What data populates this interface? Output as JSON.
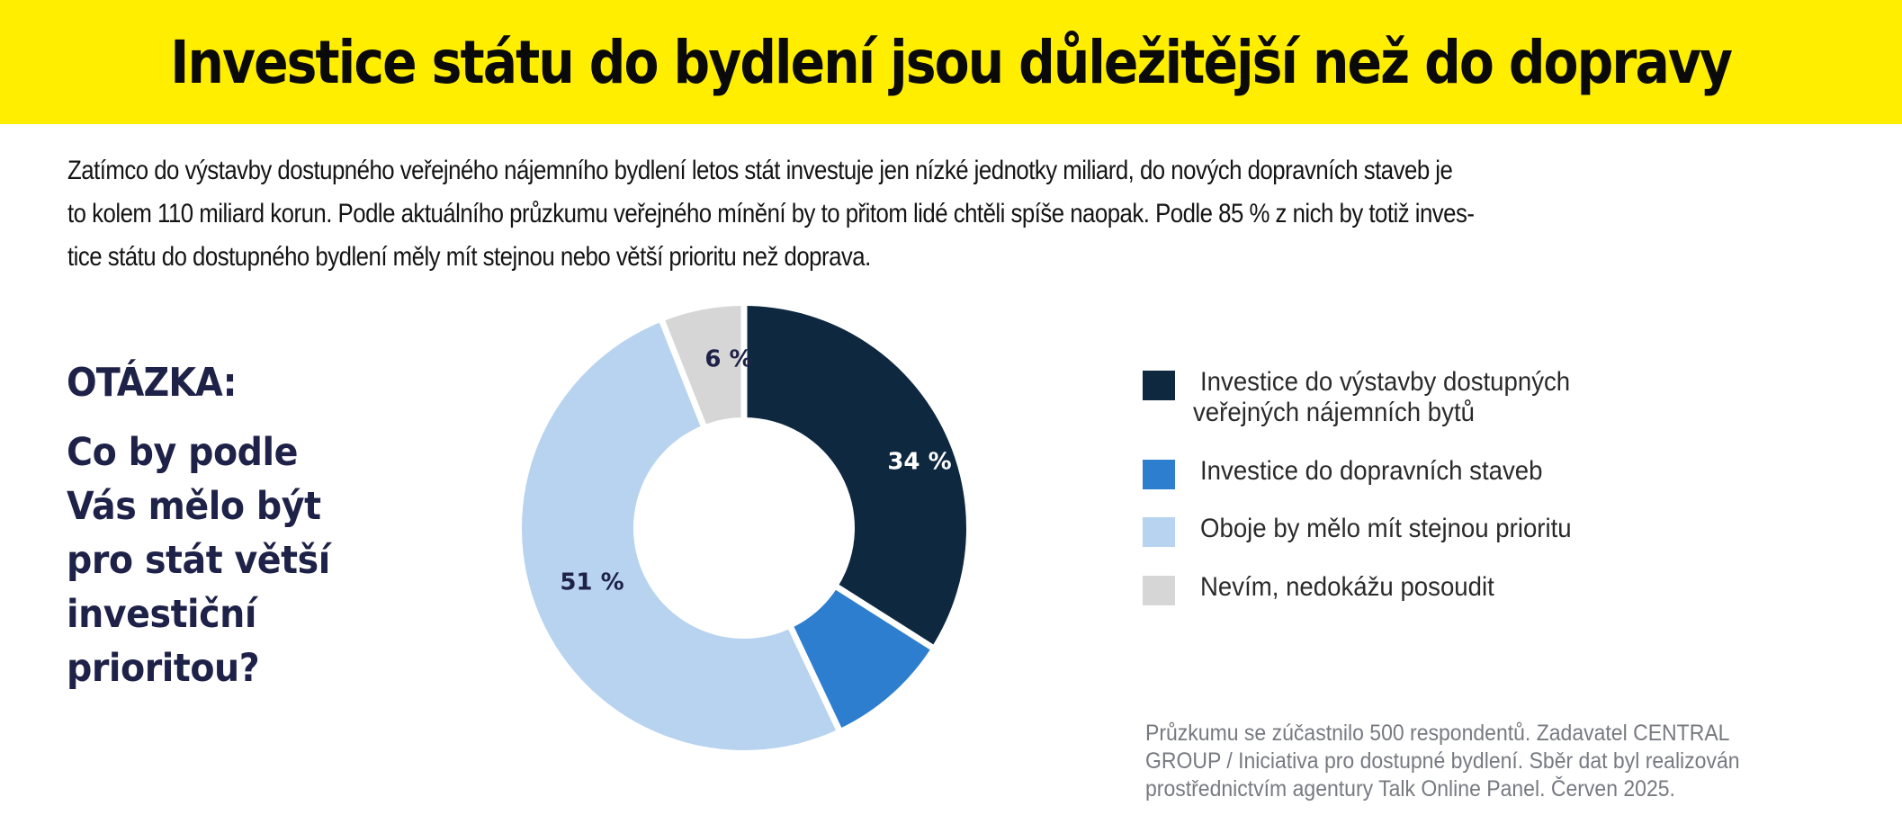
{
  "header": {
    "title": "Investice státu do bydlení jsou důležitější než do dopravy",
    "background_color": "#ffee00"
  },
  "lead": {
    "lines": [
      "Zatímco do výstavby dostupného veřejného nájemního bydlení letos stát investuje jen nízké jednotky miliard, do nových dopravních staveb je",
      "to kolem 110 miliard korun. Podle aktuálního průzkumu veřejného mínění by to přitom lidé chtěli spíše naopak. Podle 85 % z nich by totiž inves-",
      "tice státu do dostupného bydlení měly mít stejnou nebo větší prioritu než doprava."
    ]
  },
  "question": {
    "label": "OTÁZKA:",
    "lines": [
      "Co by podle",
      "Vás mělo být",
      "pro stát větší",
      "investiční",
      "prioritou?"
    ]
  },
  "legend": {
    "items": [
      {
        "lines": [
          "Investice do výstavby dostupných",
          "veřejných nájemních bytů"
        ],
        "color": "#0e2840"
      },
      {
        "lines": [
          "Investice do dopravních staveb"
        ],
        "color": "#2e7ecf"
      },
      {
        "lines": [
          "Oboje by mělo mít stejnou prioritu"
        ],
        "color": "#b7d3ef"
      },
      {
        "lines": [
          "Nevím, nedokážu posoudit"
        ],
        "color": "#d6d6d6"
      }
    ]
  },
  "footnote": {
    "lines": [
      "Průzkumu se zúčastnilo 500 respondentů. Zadavatel CENTRAL",
      "GROUP / Iniciativa pro dostupné bydlení. Sběr dat byl realizován",
      "prostřednictvím agentury Talk Online Panel. Červen 2025."
    ]
  },
  "chart_data": {
    "type": "pie",
    "variant": "donut",
    "title": "Co by podle Vás mělo být pro stát větší investiční prioritou?",
    "categories": [
      "Investice do výstavby dostupných veřejných nájemních bytů",
      "Investice do dopravních staveb",
      "Oboje by mělo mít stejnou prioritu",
      "Nevím, nedokážu posoudit"
    ],
    "values": [
      34,
      9,
      51,
      6
    ],
    "labels": [
      "34 %",
      "",
      "51 %",
      "6 %"
    ],
    "label_colors": [
      "#ffffff",
      "#ffffff",
      "#1f2248",
      "#1f2248"
    ],
    "colors": [
      "#0e2840",
      "#2e7ecf",
      "#b7d3ef",
      "#d6d6d6"
    ],
    "start_angle": "12 o'clock, clockwise",
    "legend_position": "right"
  }
}
